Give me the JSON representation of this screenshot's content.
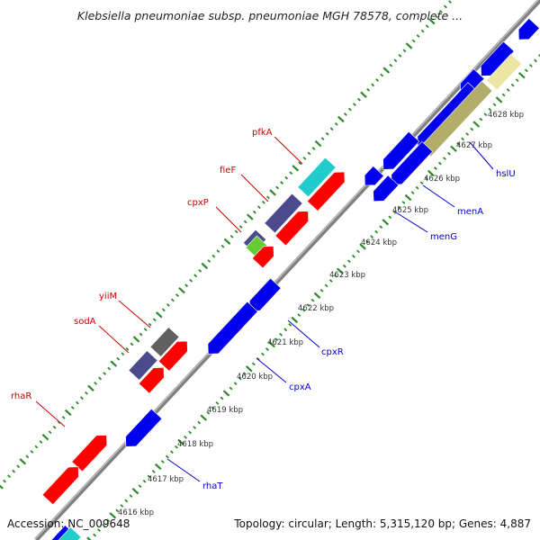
{
  "title": "Klebsiella pneumoniae subsp. pneumoniae MGH 78578, complete ...",
  "footer": {
    "accession": "Accession: NC_009648",
    "topology": "Topology: circular; Length: 5,315,120 bp; Genes: 4,887"
  },
  "colors": {
    "backbone": "#808080",
    "tick": "#2a8a2a",
    "forward_label": "#cc0000",
    "reverse_label": "#0000cc",
    "forward_gene": "#ff0000",
    "reverse_gene": "#0000ee",
    "gray_gene": "#606060",
    "purple_gene": "#4a4a8c",
    "cyan_gene": "#22cccc",
    "olive_gene": "#b3ad6a",
    "khaki_gene": "#ece6a2",
    "green_gene": "#66cc33"
  },
  "kbp_labels": [
    "4616 kbp",
    "4617 kbp",
    "4618 kbp",
    "4619 kbp",
    "4620 kbp",
    "4621 kbp",
    "4622 kbp",
    "4623 kbp",
    "4624 kbp",
    "4625 kbp",
    "4626 kbp",
    "4627 kbp",
    "4628 kbp"
  ],
  "forward_labels": [
    "pfkA",
    "fieF",
    "cpxP",
    "yiiM",
    "sodA",
    "rhaR"
  ],
  "reverse_labels": [
    "hslU",
    "menA",
    "menG",
    "cpxR",
    "cpxA",
    "rhaT"
  ]
}
